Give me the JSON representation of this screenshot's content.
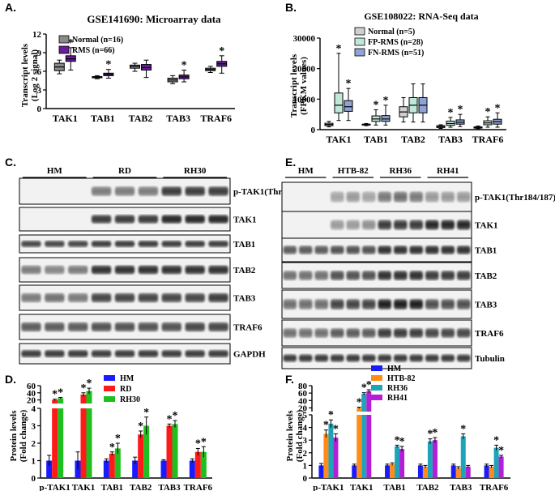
{
  "panels": {
    "A": {
      "label": "A.",
      "title": "GSE141690: Microarray data",
      "ylabel": [
        "Transcript levels",
        "(Log 2 signal)"
      ],
      "yticks": [
        "0",
        "3",
        "6",
        "9",
        "12"
      ],
      "legend": [
        "Normal (n=16)",
        "RMS (n=66)"
      ]
    },
    "B": {
      "label": "B.",
      "title": "GSE108022: RNA-Seq data",
      "ylabel": [
        "Transcript levels",
        "(FPKM values)"
      ],
      "yticks": [
        "0",
        "10000",
        "20000",
        "30000"
      ],
      "legend": [
        "Normal (n=5)",
        "FP-RMS (n=28)",
        "FN-RMS (n=51)"
      ]
    },
    "C": {
      "label": "C.",
      "groups": [
        "HM",
        "RD",
        "RH30"
      ],
      "bands": [
        "p-TAK1(Thr184/187)",
        "TAK1",
        "TAB1",
        "TAB2",
        "TAB3",
        "TRAF6",
        "GAPDH"
      ]
    },
    "D": {
      "label": "D.",
      "ylabel": [
        "Protein levels",
        "(Fold change)"
      ],
      "yticks_top": [
        "20",
        "40",
        "60"
      ],
      "yticks_bottom": [
        "0",
        "1",
        "2",
        "3",
        "4"
      ],
      "legend": [
        "HM",
        "RD",
        "RH30"
      ]
    },
    "E": {
      "label": "E.",
      "groups": [
        "HM",
        "HTB-82",
        "RH36",
        "RH41"
      ],
      "bands": [
        "p-TAK1(Thr184/187)",
        "TAK1",
        "TAB1",
        "TAB2",
        "TAB3",
        "TRAF6",
        "Tubulin"
      ]
    },
    "F": {
      "label": "F.",
      "ylabel": [
        "Protein levels",
        "(Fold change)"
      ],
      "yticks_top": [
        "20",
        "40",
        "60",
        "80"
      ],
      "yticks_bottom": [
        "0",
        "1",
        "2",
        "3",
        "4",
        "5"
      ],
      "legend": [
        "HM",
        "HTB-82",
        "RH36",
        "RH41"
      ]
    }
  },
  "colors": {
    "normal_gray": "#8a8a8a",
    "rms_purple": "#6a1b9a",
    "fp_rms": "#bfe8d8",
    "fn_rms": "#8fa3d6",
    "hm": "#1a1aff",
    "rd": "#ff1a1a",
    "rh30": "#1fbf1f",
    "htb82": "#ff8c1a",
    "rh36": "#1fa3b8",
    "rh41": "#b31fd6"
  },
  "asterisk": "*",
  "chart_data": [
    {
      "type": "box",
      "panel": "A",
      "title": "GSE141690: Microarray data",
      "ylabel": "Transcript levels (Log 2 signal)",
      "ylim": [
        0,
        12
      ],
      "categories": [
        "TAK1",
        "TAB1",
        "TAB2",
        "TAB3",
        "TRAF6"
      ],
      "series": [
        {
          "name": "Normal (n=16)",
          "boxes": [
            {
              "min": 5.6,
              "q1": 6.1,
              "median": 6.7,
              "q3": 7.3,
              "max": 7.8
            },
            {
              "min": 4.8,
              "q1": 4.95,
              "median": 5.05,
              "q3": 5.15,
              "max": 5.3
            },
            {
              "min": 6.0,
              "q1": 6.5,
              "median": 6.8,
              "q3": 7.0,
              "max": 7.3
            },
            {
              "min": 4.0,
              "q1": 4.3,
              "median": 4.6,
              "q3": 4.9,
              "max": 5.3
            },
            {
              "min": 5.8,
              "q1": 6.1,
              "median": 6.3,
              "q3": 6.5,
              "max": 6.8
            }
          ]
        },
        {
          "name": "RMS (n=66)",
          "boxes": [
            {
              "min": 6.2,
              "q1": 7.6,
              "median": 8.0,
              "q3": 8.5,
              "max": 9.8
            },
            {
              "min": 4.9,
              "q1": 5.3,
              "median": 5.5,
              "q3": 5.7,
              "max": 6.3
            },
            {
              "min": 5.0,
              "q1": 6.2,
              "median": 6.6,
              "q3": 7.1,
              "max": 7.8
            },
            {
              "min": 4.3,
              "q1": 4.8,
              "median": 5.1,
              "q3": 5.4,
              "max": 6.2
            },
            {
              "min": 5.7,
              "q1": 6.8,
              "median": 7.2,
              "q3": 7.6,
              "max": 8.5
            }
          ]
        }
      ],
      "significant": [
        true,
        true,
        false,
        true,
        true
      ]
    },
    {
      "type": "box",
      "panel": "B",
      "title": "GSE108022: RNA-Seq data",
      "ylabel": "Transcript levels (FPKM values)",
      "ylim": [
        0,
        30000
      ],
      "categories": [
        "TAK1",
        "TAB1",
        "TAB2",
        "TAB3",
        "TRAF6"
      ],
      "series": [
        {
          "name": "Normal (n=5)",
          "boxes": [
            {
              "min": 900,
              "q1": 1300,
              "median": 1700,
              "q3": 2100,
              "max": 2700
            },
            {
              "min": 1300,
              "q1": 1500,
              "median": 1650,
              "q3": 1800,
              "max": 2000
            },
            {
              "min": 2500,
              "q1": 4200,
              "median": 5800,
              "q3": 7500,
              "max": 10500
            },
            {
              "min": 400,
              "q1": 700,
              "median": 1000,
              "q3": 1300,
              "max": 1600
            },
            {
              "min": 300,
              "q1": 500,
              "median": 700,
              "q3": 900,
              "max": 1200
            }
          ]
        },
        {
          "name": "FP-RMS (n=28)",
          "boxes": [
            {
              "min": 3000,
              "q1": 5500,
              "median": 8000,
              "q3": 12000,
              "max": 25000
            },
            {
              "min": 1500,
              "q1": 2700,
              "median": 3500,
              "q3": 4500,
              "max": 6500
            },
            {
              "min": 2500,
              "q1": 5500,
              "median": 8000,
              "q3": 10500,
              "max": 15000
            },
            {
              "min": 800,
              "q1": 1400,
              "median": 2000,
              "q3": 2800,
              "max": 4000
            },
            {
              "min": 800,
              "q1": 1600,
              "median": 2200,
              "q3": 2900,
              "max": 4200
            }
          ]
        },
        {
          "name": "FN-RMS (n=51)",
          "boxes": [
            {
              "min": 3000,
              "q1": 6000,
              "median": 7500,
              "q3": 9500,
              "max": 13500
            },
            {
              "min": 1500,
              "q1": 2700,
              "median": 3500,
              "q3": 4600,
              "max": 8000
            },
            {
              "min": 2500,
              "q1": 5500,
              "median": 8000,
              "q3": 10500,
              "max": 15000
            },
            {
              "min": 1000,
              "q1": 1800,
              "median": 2400,
              "q3": 3200,
              "max": 5000
            },
            {
              "min": 800,
              "q1": 1800,
              "median": 2600,
              "q3": 3400,
              "max": 5500
            }
          ]
        }
      ],
      "significant": [
        [
          true,
          true
        ],
        [
          true,
          true
        ],
        [
          false,
          false
        ],
        [
          true,
          true
        ],
        [
          true,
          true
        ]
      ]
    },
    {
      "type": "bar",
      "panel": "D",
      "ylabel": "Protein levels (Fold change)",
      "broken_axis": {
        "lower": [
          0,
          4
        ],
        "upper": [
          10,
          60
        ]
      },
      "categories": [
        "p-TAK1",
        "TAK1",
        "TAB1",
        "TAB2",
        "TAB3",
        "TRAF6"
      ],
      "series": [
        {
          "name": "HM",
          "values": [
            1.0,
            1.0,
            1.0,
            1.0,
            1.0,
            1.0
          ],
          "errors": [
            0.3,
            0.5,
            0.1,
            0.2,
            0.05,
            0.1
          ]
        },
        {
          "name": "RD",
          "values": [
            20,
            35,
            1.4,
            2.5,
            3.0,
            1.5
          ],
          "errors": [
            2,
            5,
            0.1,
            0.2,
            0.1,
            0.2
          ]
        },
        {
          "name": "RH30",
          "values": [
            25,
            45,
            1.7,
            3.0,
            3.1,
            1.5
          ],
          "errors": [
            2,
            8,
            0.3,
            0.5,
            0.2,
            0.3
          ]
        }
      ],
      "significant": [
        [
          true,
          true
        ],
        [
          true,
          true
        ],
        [
          true,
          true
        ],
        [
          true,
          true
        ],
        [
          true,
          true
        ],
        [
          true,
          true
        ]
      ]
    },
    {
      "type": "bar",
      "panel": "F",
      "ylabel": "Protein levels (Fold change)",
      "broken_axis": {
        "lower": [
          0,
          5
        ],
        "upper": [
          10,
          80
        ]
      },
      "categories": [
        "p-TAK1",
        "TAK1",
        "TAB1",
        "TAB2",
        "TAB3",
        "TRAF6"
      ],
      "series": [
        {
          "name": "HM",
          "values": [
            1.0,
            1.0,
            1.0,
            1.0,
            1.0,
            1.0
          ],
          "errors": [
            0.15,
            0.1,
            0.1,
            0.1,
            0.1,
            0.1
          ]
        },
        {
          "name": "HTB-82",
          "values": [
            3.5,
            20,
            1.1,
            0.9,
            0.8,
            0.9
          ],
          "errors": [
            0.3,
            2,
            0.1,
            0.1,
            0.1,
            0.1
          ]
        },
        {
          "name": "RH36",
          "values": [
            4.3,
            58,
            2.5,
            2.9,
            3.3,
            2.4
          ],
          "errors": [
            0.3,
            3,
            0.1,
            0.2,
            0.2,
            0.2
          ]
        },
        {
          "name": "RH41",
          "values": [
            3.2,
            65,
            2.3,
            3.0,
            0.9,
            1.7
          ],
          "errors": [
            0.3,
            4,
            0.2,
            0.2,
            0.1,
            0.1
          ]
        }
      ],
      "significant": [
        [
          true,
          true,
          true
        ],
        [
          true,
          true,
          true
        ],
        [
          false,
          true,
          true
        ],
        [
          false,
          true,
          true
        ],
        [
          false,
          true,
          false
        ],
        [
          false,
          true,
          true
        ]
      ]
    }
  ]
}
